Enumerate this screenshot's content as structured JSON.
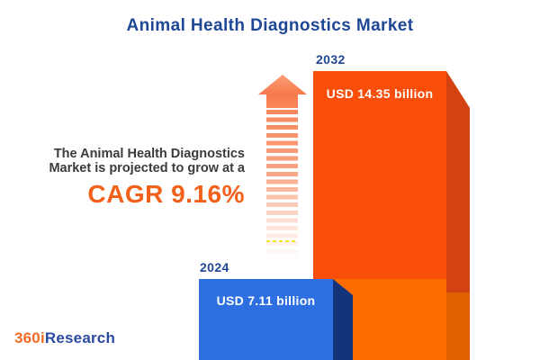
{
  "title": "Animal Health Diagnostics Market",
  "description": {
    "line1": "The Animal Health Diagnostics",
    "line2": "Market is projected to grow at a",
    "cagr": "CAGR 9.16%"
  },
  "chart_data": {
    "type": "bar",
    "title": "Animal Health Diagnostics Market",
    "categories": [
      "2024",
      "2032"
    ],
    "values": [
      7.11,
      14.35
    ],
    "value_labels": [
      "USD 7.11 billion",
      "USD 14.35 billion"
    ],
    "unit": "USD billion",
    "cagr_percent": 9.16,
    "annotations": [
      "The Animal Health Diagnostics Market is projected to grow at a CAGR 9.16%"
    ],
    "legend_position": "none",
    "grid": false,
    "style": "3d-infographic-bars-with-growth-arrow"
  },
  "bars": [
    {
      "year": "2024",
      "label": "USD 7.11 billion"
    },
    {
      "year": "2032",
      "label": "USD 14.35 billion"
    }
  ],
  "logo": {
    "prefix": "360i",
    "suffix": "Research"
  },
  "colors": {
    "title_blue": "#1E4796",
    "bar2024_face": "#2D6FE0",
    "bar2024_side": "#13347A",
    "bar2032_face_top": "#F94D0A",
    "bar2032_face_bottom": "#FB6B00",
    "bar2032_side_top": "#D34311",
    "bar2032_side_bottom": "#E05F00",
    "arrow_coral": "#F8875C",
    "cagr_orange": "#F2601A",
    "text_dark": "#3B3B3B",
    "logo_orange": "#F16A22",
    "logo_blue": "#2B4AA2",
    "accent_yellow": "#F2E52E"
  }
}
